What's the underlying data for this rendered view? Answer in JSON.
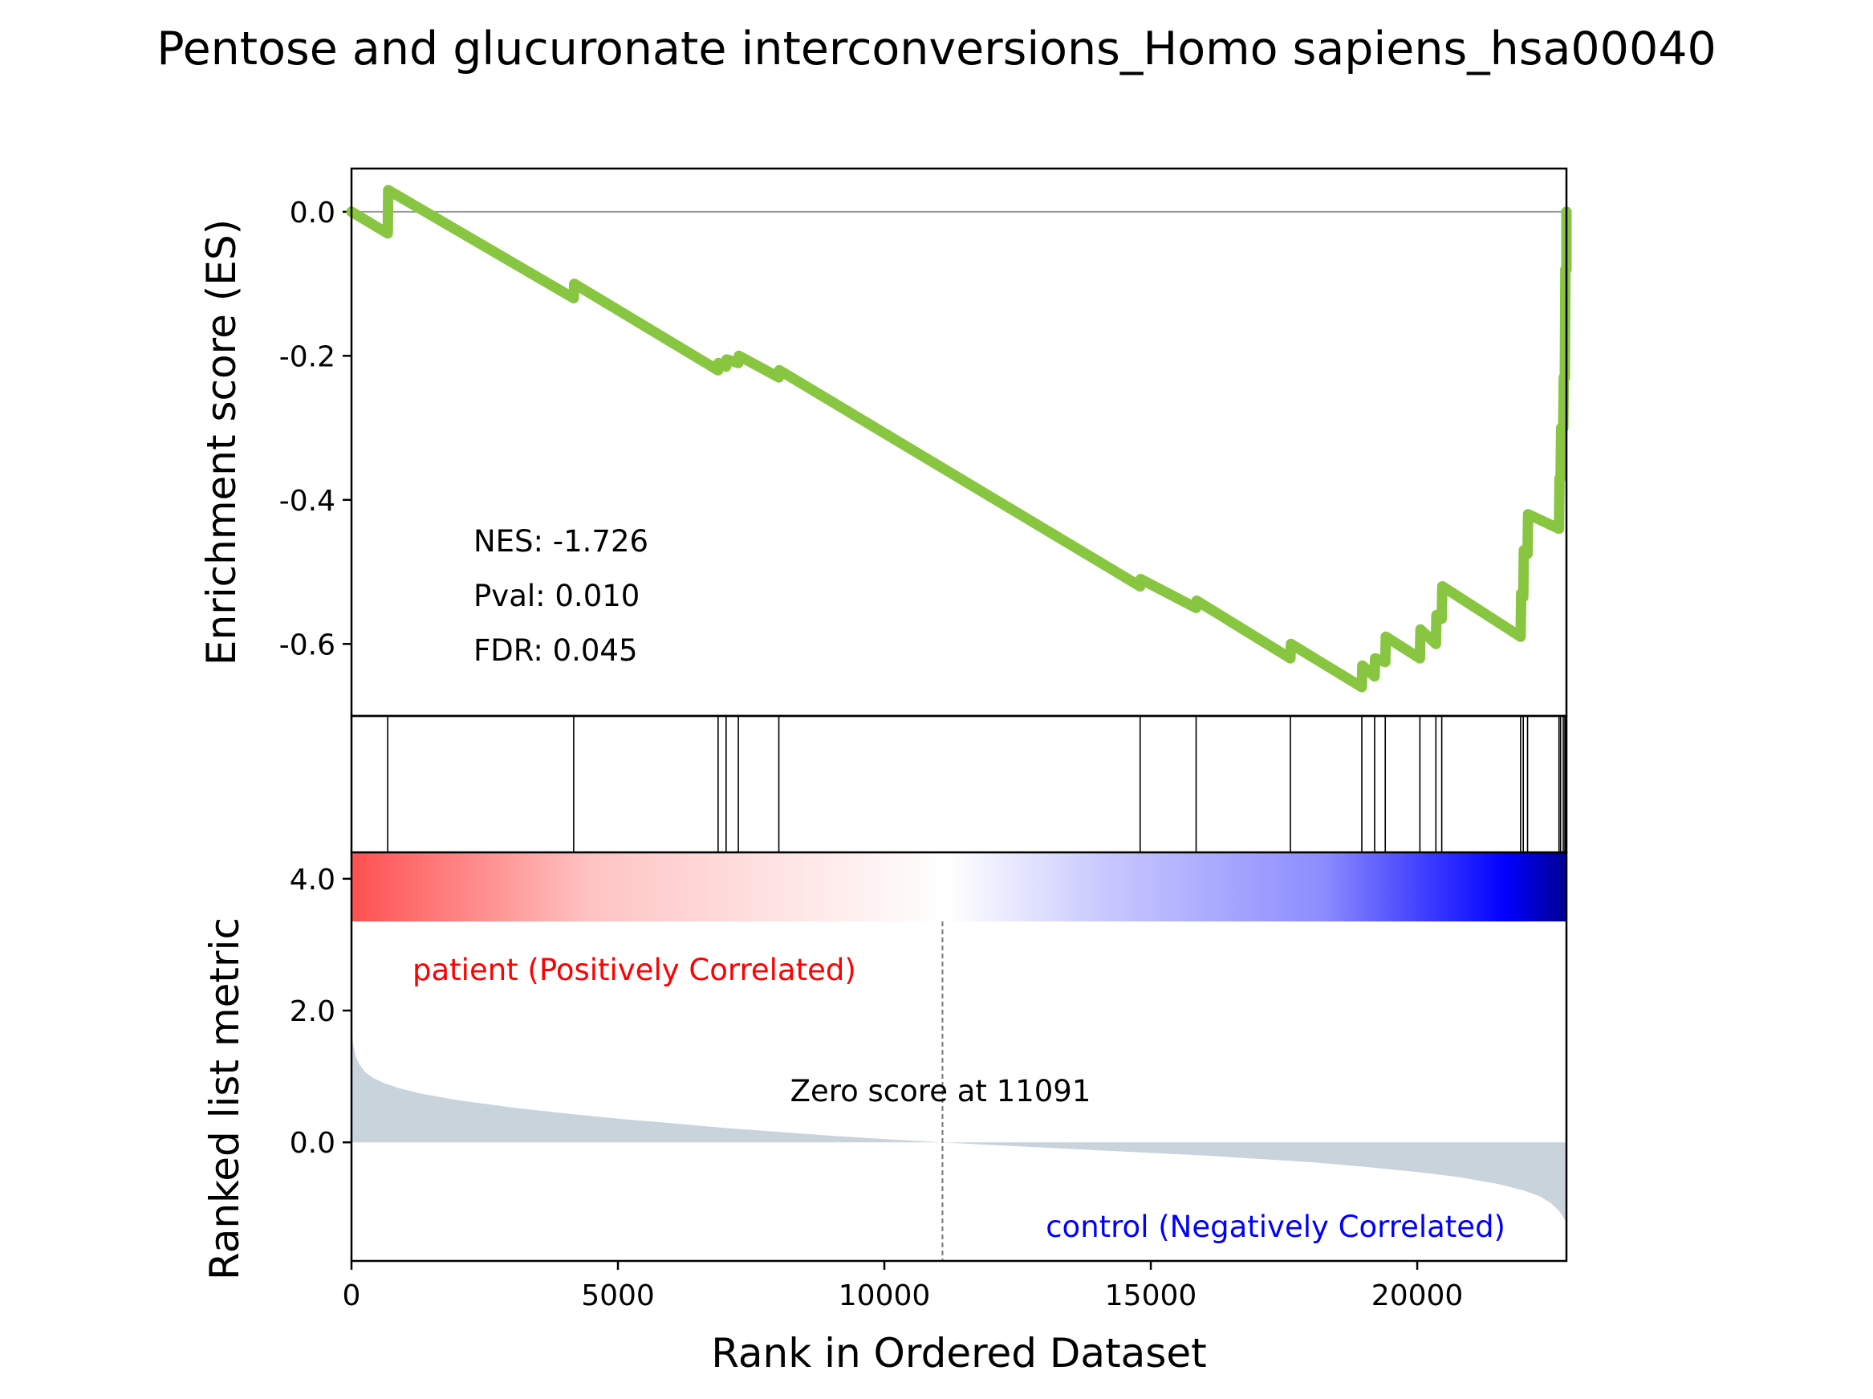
{
  "chart_data": {
    "type": "line",
    "title": "Pentose and glucuronate interconversions_Homo sapiens_hsa00040",
    "n_genes": 22800,
    "xlabel": "Rank in Ordered Dataset",
    "xlim": [
      0,
      22800
    ],
    "x_ticks": [
      "0",
      "5000",
      "10000",
      "15000",
      "20000"
    ],
    "enrichment_panel": {
      "ylabel": "Enrichment score (ES)",
      "ylim": [
        -0.7,
        0.06
      ],
      "y_ticks": [
        "0.0",
        "-0.2",
        "-0.4",
        "-0.6"
      ],
      "line_color": "#88c540",
      "stats": {
        "nes": "NES: -1.726",
        "pval": "Pval: 0.010",
        "fdr": "FDR: 0.045"
      },
      "es_curve": {
        "x": [
          0,
          680,
          690,
          4170,
          4180,
          6880,
          6890,
          7030,
          7040,
          7260,
          7270,
          8020,
          8030,
          14800,
          14810,
          15850,
          15860,
          17620,
          17630,
          18960,
          18970,
          19200,
          19210,
          19400,
          19410,
          20050,
          20060,
          20350,
          20360,
          20460,
          20470,
          21940,
          21950,
          21990,
          22000,
          22070,
          22080,
          22660,
          22670,
          22690,
          22700,
          22740,
          22750,
          22770,
          22780,
          22800,
          22810
        ],
        "y": [
          0.0,
          -0.03,
          0.03,
          -0.12,
          -0.1,
          -0.22,
          -0.21,
          -0.215,
          -0.205,
          -0.21,
          -0.2,
          -0.23,
          -0.22,
          -0.52,
          -0.51,
          -0.55,
          -0.54,
          -0.62,
          -0.6,
          -0.66,
          -0.63,
          -0.645,
          -0.62,
          -0.625,
          -0.59,
          -0.62,
          -0.58,
          -0.6,
          -0.56,
          -0.565,
          -0.52,
          -0.59,
          -0.53,
          -0.535,
          -0.47,
          -0.475,
          -0.42,
          -0.44,
          -0.37,
          -0.37,
          -0.3,
          -0.3,
          -0.23,
          -0.23,
          -0.08,
          -0.08,
          0.0
        ]
      }
    },
    "hits_panel": {
      "hit_ranks": [
        680,
        4170,
        6880,
        7030,
        7260,
        8020,
        14800,
        15850,
        17620,
        18960,
        19200,
        19400,
        20050,
        20350,
        20460,
        21940,
        21990,
        22070,
        22660,
        22690,
        22740,
        22770,
        22800
      ]
    },
    "ranked_panel": {
      "ylabel": "Ranked list metric",
      "ylim": [
        -1.8,
        4.4
      ],
      "y_ticks": [
        "4.0",
        "2.0",
        "0.0"
      ],
      "fill_color": "#c9d3dc",
      "zero_score_rank": 11091,
      "zero_label": "Zero score at 11091",
      "pos_label": "patient (Positively Correlated)",
      "neg_label": "control (Negatively Correlated)",
      "metric_curve": {
        "x": [
          0,
          30,
          80,
          150,
          250,
          400,
          600,
          900,
          1300,
          2000,
          3000,
          4000,
          5000,
          6000,
          7000,
          8000,
          9000,
          10000,
          11091,
          12000,
          13000,
          14000,
          15000,
          16000,
          17000,
          18000,
          19000,
          20000,
          20800,
          21500,
          22000,
          22300,
          22500,
          22650,
          22750,
          22800
        ],
        "y": [
          1.75,
          1.5,
          1.3,
          1.18,
          1.07,
          0.98,
          0.9,
          0.82,
          0.74,
          0.64,
          0.53,
          0.44,
          0.36,
          0.29,
          0.22,
          0.16,
          0.1,
          0.05,
          0.0,
          -0.04,
          -0.08,
          -0.12,
          -0.16,
          -0.2,
          -0.25,
          -0.3,
          -0.37,
          -0.45,
          -0.53,
          -0.63,
          -0.73,
          -0.82,
          -0.92,
          -1.03,
          -1.15,
          -1.22
        ]
      }
    },
    "colorbar": {
      "stops": [
        "#ff5050",
        "#ffc4c4",
        "#ffffff",
        "#c8c8ff",
        "#8c8cff",
        "#0000ff",
        "#000090"
      ]
    }
  }
}
